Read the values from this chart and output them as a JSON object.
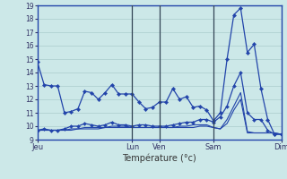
{
  "xlabel": "Température (°c)",
  "bg_color": "#cce8e8",
  "line_color": "#2244aa",
  "grid_color": "#aacccc",
  "dark_vline_color": "#445566",
  "ylim": [
    9,
    19
  ],
  "yticks": [
    9,
    10,
    11,
    12,
    13,
    14,
    15,
    16,
    17,
    18,
    19
  ],
  "day_labels": [
    "Jeu",
    "Lun",
    "Ven",
    "Sam",
    "Dim"
  ],
  "day_positions": [
    0,
    14,
    18,
    26,
    36
  ],
  "n_points": 37,
  "line1_y": [
    14.8,
    13.1,
    13.0,
    13.0,
    11.0,
    11.1,
    11.3,
    12.6,
    12.5,
    12.0,
    12.5,
    13.1,
    12.4,
    12.4,
    12.4,
    11.8,
    11.3,
    11.4,
    11.8,
    11.8,
    12.8,
    12.0,
    12.2,
    11.4,
    11.5,
    11.2,
    10.4,
    11.0,
    15.0,
    18.3,
    18.8,
    15.5,
    16.1,
    12.8,
    10.5,
    9.4,
    9.4
  ],
  "line2_y": [
    9.7,
    9.8,
    9.7,
    9.7,
    9.8,
    10.0,
    10.0,
    10.2,
    10.1,
    10.0,
    10.1,
    10.3,
    10.1,
    10.1,
    10.0,
    10.1,
    10.1,
    10.0,
    10.0,
    10.0,
    10.1,
    10.2,
    10.3,
    10.3,
    10.5,
    10.5,
    10.3,
    10.7,
    11.5,
    13.0,
    14.0,
    11.0,
    10.5,
    10.5,
    9.7,
    9.4,
    9.4
  ],
  "line3_y": [
    9.7,
    9.7,
    9.7,
    9.7,
    9.7,
    9.8,
    9.8,
    9.9,
    9.9,
    9.9,
    9.9,
    10.0,
    10.0,
    10.0,
    9.9,
    9.9,
    9.9,
    9.9,
    9.9,
    9.9,
    9.9,
    10.0,
    10.0,
    10.1,
    10.1,
    10.1,
    9.9,
    9.8,
    10.5,
    11.5,
    12.5,
    9.6,
    9.5,
    9.5,
    9.5,
    9.5,
    9.4
  ],
  "line4_y": [
    9.7,
    9.7,
    9.7,
    9.7,
    9.7,
    9.7,
    9.8,
    9.8,
    9.8,
    9.8,
    9.9,
    9.9,
    9.9,
    9.9,
    9.9,
    9.9,
    9.9,
    9.9,
    9.9,
    9.9,
    9.9,
    9.9,
    9.9,
    9.9,
    10.0,
    10.0,
    9.9,
    9.8,
    10.2,
    11.2,
    12.0,
    9.5,
    9.5,
    9.5,
    9.5,
    9.5,
    9.4
  ]
}
